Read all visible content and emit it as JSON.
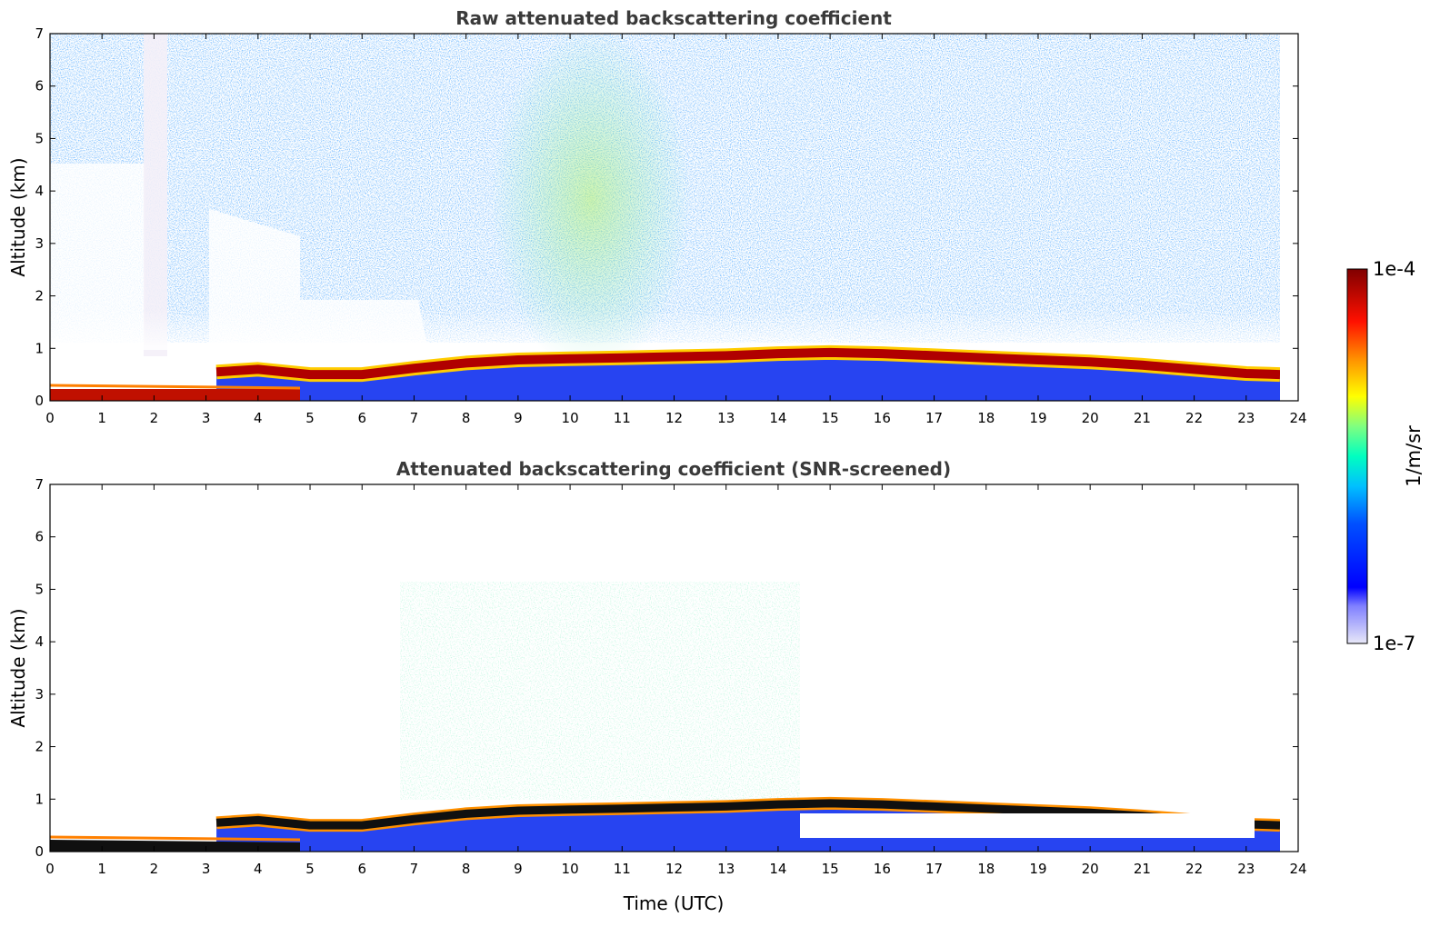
{
  "chart_data": [
    {
      "type": "heatmap",
      "title": "Raw attenuated backscattering coefficient",
      "xlabel": "",
      "ylabel": "Altitude (km)",
      "xlim": [
        0,
        24
      ],
      "ylim": [
        0,
        7
      ],
      "xticks": [
        "0",
        "1",
        "2",
        "3",
        "4",
        "5",
        "6",
        "7",
        "8",
        "9",
        "10",
        "11",
        "12",
        "13",
        "14",
        "15",
        "16",
        "17",
        "18",
        "19",
        "20",
        "21",
        "22",
        "23",
        "24"
      ],
      "yticks": [
        "0",
        "1",
        "2",
        "3",
        "4",
        "5",
        "6",
        "7"
      ],
      "data_end_time": 23.65,
      "boundary_layer_top_km": {
        "time": [
          3.2,
          4,
          5,
          6,
          7,
          8,
          9,
          10,
          11,
          12,
          13,
          14,
          15,
          16,
          17,
          18,
          19,
          20,
          21,
          22,
          23,
          23.65
        ],
        "altitude": [
          0.55,
          0.6,
          0.5,
          0.5,
          0.62,
          0.72,
          0.78,
          0.8,
          0.82,
          0.84,
          0.86,
          0.9,
          0.92,
          0.9,
          0.86,
          0.82,
          0.78,
          0.74,
          0.68,
          0.6,
          0.52,
          0.5
        ]
      },
      "screened": false
    },
    {
      "type": "heatmap",
      "title": "Attenuated backscattering coefficient (SNR-screened)",
      "xlabel": "Time (UTC)",
      "ylabel": "Altitude (km)",
      "xlim": [
        0,
        24
      ],
      "ylim": [
        0,
        7
      ],
      "xticks": [
        "0",
        "1",
        "2",
        "3",
        "4",
        "5",
        "6",
        "7",
        "8",
        "9",
        "10",
        "11",
        "12",
        "13",
        "14",
        "15",
        "16",
        "17",
        "18",
        "19",
        "20",
        "21",
        "22",
        "23",
        "24"
      ],
      "yticks": [
        "0",
        "1",
        "2",
        "3",
        "4",
        "5",
        "6",
        "7"
      ],
      "data_end_time": 23.65,
      "boundary_layer_top_km": {
        "time": [
          3.2,
          4,
          5,
          6,
          7,
          8,
          9,
          10,
          11,
          12,
          13,
          14,
          15,
          16,
          17,
          18,
          19,
          20,
          21,
          22,
          23,
          23.65
        ],
        "altitude": [
          0.55,
          0.6,
          0.5,
          0.5,
          0.62,
          0.72,
          0.78,
          0.8,
          0.82,
          0.84,
          0.86,
          0.9,
          0.92,
          0.9,
          0.86,
          0.82,
          0.78,
          0.74,
          0.68,
          0.6,
          0.52,
          0.5
        ]
      },
      "screened": true
    }
  ],
  "colorbar": {
    "max_label": "1e-4",
    "min_label": "1e-7",
    "unit_label": "1/m/sr",
    "colormap": "jet",
    "colors": [
      "#e8e8f8",
      "#0000ff",
      "#00c0ff",
      "#00ffc0",
      "#c0ff40",
      "#ffff00",
      "#ff8000",
      "#ff0000",
      "#800000"
    ]
  }
}
